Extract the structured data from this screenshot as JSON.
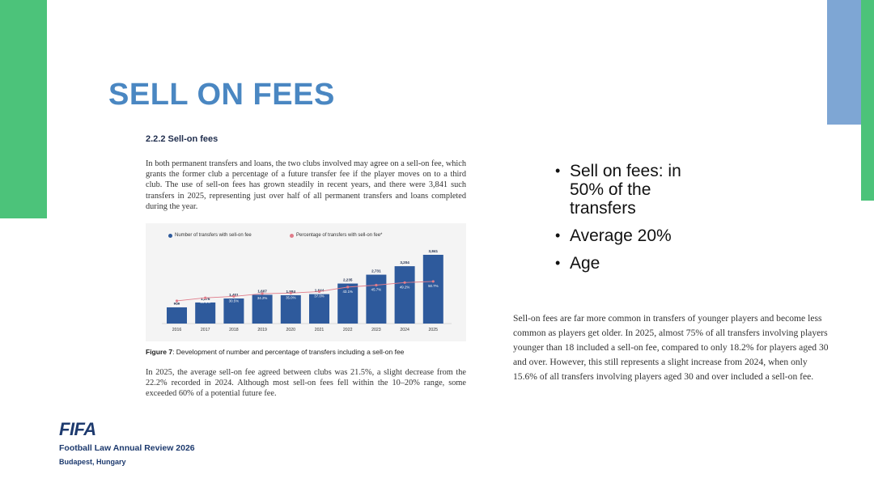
{
  "slide": {
    "title": "SELL ON FEES"
  },
  "excerpt": {
    "section_heading": "2.2.2  Sell-on fees",
    "paragraph1": "In both permanent transfers and loans, the two clubs involved may agree on a sell-on fee, which grants the former club a percentage of a future transfer fee if the player moves on to a third club. The use of sell-on fees has grown steadily in recent years, and there were 3,841 such transfers in 2025, representing just over half of all permanent transfers and loans completed during the year.",
    "caption_label": "Figure 7",
    "caption_text": ": Development of number and percentage of transfers including a sell-on fee",
    "paragraph2": "In 2025, the average sell-on fee agreed between clubs was 21.5%, a slight decrease from the 22.2% recorded in 2024. Although most sell-on fees fell within the 10–20% range, some exceeded 60% of a potential future fee."
  },
  "chart_data": {
    "type": "bar",
    "legend": [
      "Number of transfers with sell-on fee",
      "Percentage of transfers with sell-on fee*"
    ],
    "categories": [
      "2016",
      "2017",
      "2018",
      "2019",
      "2020",
      "2021",
      "2022",
      "2023",
      "2024",
      "2025"
    ],
    "series": [
      {
        "name": "Number of transfers with sell-on fee",
        "type": "bar",
        "values": [
          906,
          1176,
          1401,
          1607,
          1584,
          1644,
          2235,
          2731,
          3204,
          3841
        ],
        "labels": [
          "906",
          "1,176",
          "1,401",
          "1,607",
          "1,584",
          "1,644",
          "2,235",
          "2,731",
          "3,204",
          "3,841"
        ]
      },
      {
        "name": "Percentage of transfers with sell-on fee*",
        "type": "line",
        "values": [
          24.4,
          28.5,
          30.5,
          34.2,
          35.0,
          37.0,
          43.1,
          45.7,
          49.2,
          50.7
        ],
        "labels": [
          "24.4%",
          "28.5%",
          "30.5%",
          "34.2%",
          "35.0%",
          "37.0%",
          "43.1%",
          "45.7%",
          "49.2%",
          "50.7%"
        ]
      }
    ],
    "colors": {
      "bars": "#2e5a9c",
      "line": "#e07c8a"
    }
  },
  "bullets": [
    "Sell  on  fees: in 50% of the transfers",
    "Average 20%",
    "Age"
  ],
  "note": "Sell-on fees are far more common in transfers of younger players and become less common as players get older. In 2025, almost 75% of all transfers involving players younger than 18 included a sell-on fee, compared to only 18.2% for players aged 30 and over. However, this still represents a slight increase from 2024, when only 15.6% of all transfers involving players aged 30 and over included a sell-on fee.",
  "footer": {
    "logo": "FIFA",
    "title": "Football Law Annual Review 2026",
    "location": "Budapest, Hungary"
  },
  "colors": {
    "accent_green": "#4cc37a",
    "accent_blue": "#7ea6d4",
    "title_blue": "#4a87c2",
    "fifa_navy": "#1d3a6e"
  }
}
